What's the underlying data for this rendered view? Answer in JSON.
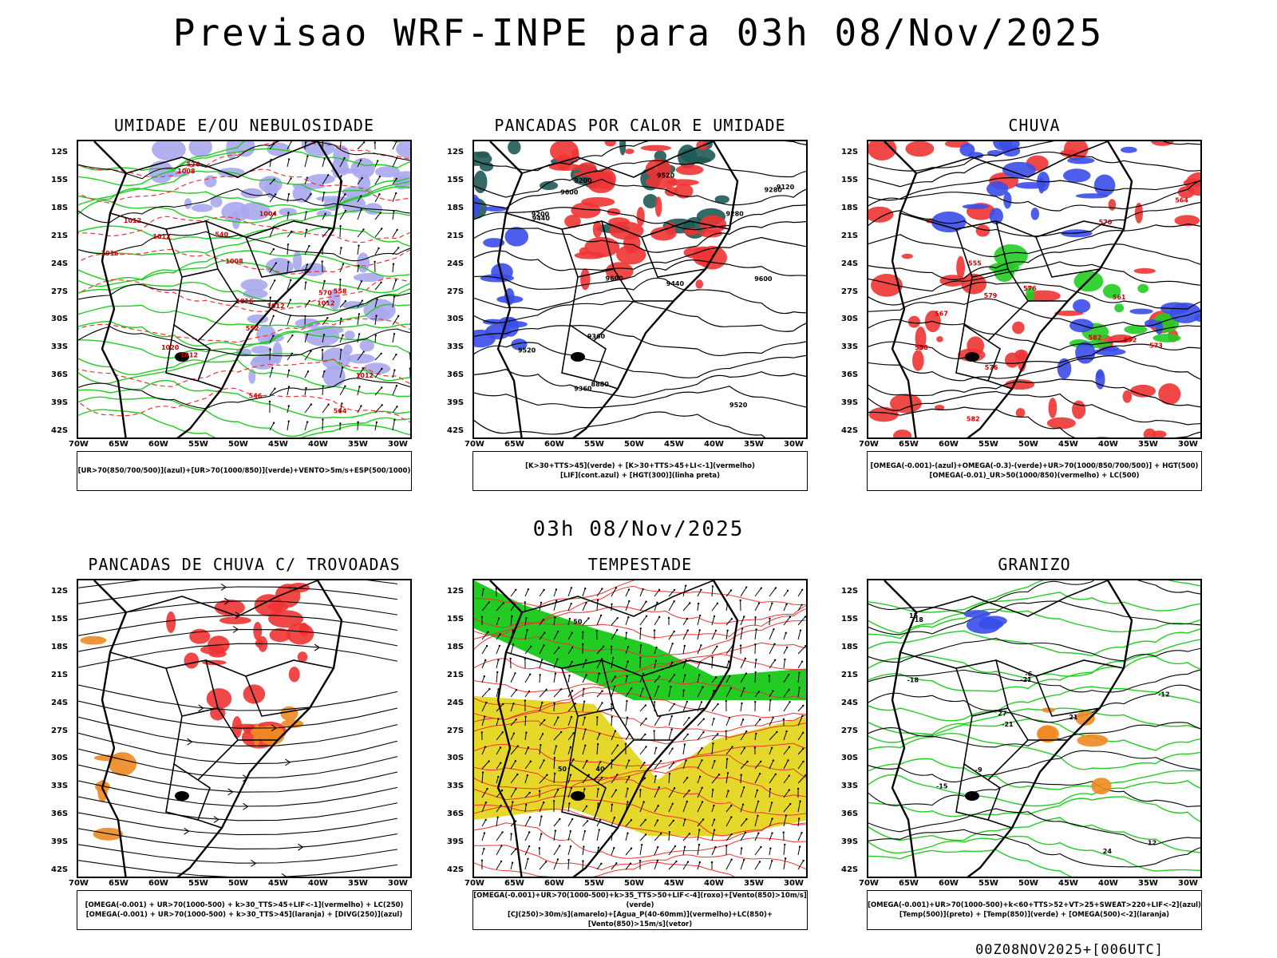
{
  "header": {
    "title": "Previsao WRF-INPE  para 03h 08/Nov/2025"
  },
  "mid_title": "03h 08/Nov/2025",
  "footer": "00Z08NOV2025+[006UTC]",
  "axes": {
    "lat_labels": [
      "12S",
      "15S",
      "18S",
      "21S",
      "24S",
      "27S",
      "30S",
      "33S",
      "36S",
      "39S",
      "42S"
    ],
    "lon_labels": [
      "70W",
      "65W",
      "60W",
      "55W",
      "50W",
      "45W",
      "40W",
      "35W",
      "30W"
    ]
  },
  "colors": {
    "blue": "#3a4ee8",
    "green": "#22cc22",
    "red": "#ee3333",
    "orange": "#ee8822",
    "lavender": "#a8a8ee",
    "darkteal": "#1f5a55",
    "yellow": "#e6d82a"
  },
  "panels": [
    {
      "id": "umidade",
      "title": "UMIDADE E/OU NEBULOSIDADE",
      "legend": [
        "[UR>70(850/700/500)](azul)+[UR>70(1000/850)](verde)+VENTO>5m/s+ESP(500/1000)"
      ],
      "contour_labels": [
        "1012",
        "1012",
        "1008",
        "1008",
        "1012",
        "1004",
        "1016",
        "1012",
        "1012",
        "1012",
        "576",
        "570",
        "564",
        "558",
        "552",
        "546",
        "540",
        "1016",
        "1020"
      ]
    },
    {
      "id": "pancadas-calor",
      "title": "PANCADAS POR CALOR E UMIDADE",
      "legend": [
        "[K>30+TTS>45](verde) + [K>30+TTS>45+LI<-1](vermelho)",
        "[LIF](cont.azul) + [HGT(300)](linha preta)"
      ],
      "contour_labels": [
        "9600",
        "9600",
        "9600",
        "9520",
        "9520",
        "9440",
        "9440",
        "9360",
        "9360",
        "9280",
        "9280",
        "9200",
        "9200",
        "9120",
        "8880",
        "9520"
      ]
    },
    {
      "id": "chuva",
      "title": "CHUVA",
      "legend": [
        "[OMEGA(-0.001)-(azul)+OMEGA(-0.3)-(verde)+UR>70(1000/850/700/500)] + HGT(500)",
        "[OMEGA(-0.01)_UR>50(1000/850)(vermelho) + LC(500)"
      ],
      "contour_labels": [
        "582",
        "582",
        "579",
        "576",
        "573",
        "570",
        "567",
        "564",
        "561",
        "558",
        "555",
        "552",
        "576"
      ]
    },
    {
      "id": "trovoadas",
      "title": "PANCADAS DE CHUVA C/ TROVOADAS",
      "legend": [
        "[OMEGA(-0.001) + UR>70(1000-500) + k>30_TTS>45+LIF<-1](vermelho) + LC(250)",
        "[OMEGA(-0.001) + UR>70(1000-500) + k>30_TTS>45](laranja) + [DIVG(250)](azul)"
      ],
      "contour_labels": []
    },
    {
      "id": "tempestade",
      "title": "TEMPESTADE",
      "legend": [
        "[OMEGA(-0.001)+UR>70(1000-500)+k>35_TTS>50+LIF<-4](roxo)+[Vento(850)>10m/s](verde)",
        "[CJ(250)>30m/s](amarelo)+[Agua_P(40-60mm)](vermelho)+LC(850)+[Vento(850)>15m/s](vetor)"
      ],
      "contour_labels": [
        "40",
        "50",
        "50"
      ]
    },
    {
      "id": "granizo",
      "title": "GRANIZO",
      "legend": [
        "[OMEGA(-0.001)+UR>70(1000-500)+k<60+TTS>52+VT>25+SWEAT>220+LIF<-2](azul)",
        "[Temp(500)](preto) + [Temp(850)](verde) + [OMEGA(500)<-2](laranja)"
      ],
      "contour_labels": [
        "-21",
        "-18",
        "-15",
        "-12",
        "-9",
        "-6",
        "12",
        "15",
        "18",
        "21",
        "24",
        "27",
        "-21"
      ]
    }
  ]
}
